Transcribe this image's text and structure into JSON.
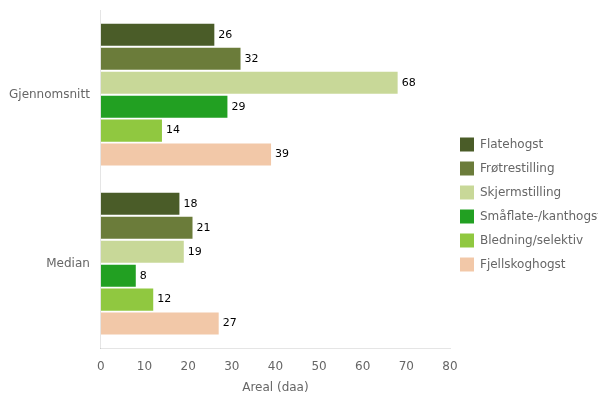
{
  "chart_data": {
    "type": "bar",
    "orientation": "horizontal",
    "categories": [
      "Gjennomsnitt",
      "Median"
    ],
    "series": [
      {
        "name": "Flatehogst",
        "color": "#4a5c28",
        "values": [
          26,
          18
        ]
      },
      {
        "name": "Frøtrestilling",
        "color": "#6b7c3a",
        "values": [
          32,
          21
        ]
      },
      {
        "name": "Skjermstilling",
        "color": "#c8d898",
        "values": [
          68,
          19
        ]
      },
      {
        "name": "Småflate-/kanthogst",
        "color": "#22a022",
        "values": [
          29,
          8
        ]
      },
      {
        "name": "Bledning/selektiv",
        "color": "#90c840",
        "values": [
          14,
          12
        ]
      },
      {
        "name": "Fjellskoghogst",
        "color": "#f2c8a8",
        "values": [
          39,
          27
        ]
      }
    ],
    "xlabel": "Areal (daa)",
    "xlim": [
      0,
      80
    ],
    "xticks": [
      0,
      10,
      20,
      30,
      40,
      50,
      60,
      70,
      80
    ],
    "data_labels": true,
    "grid": false,
    "legend": "right"
  }
}
